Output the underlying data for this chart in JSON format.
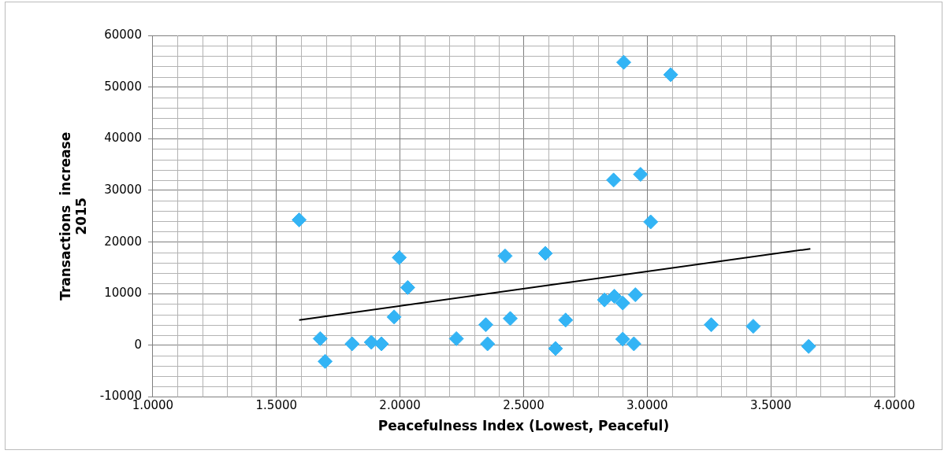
{
  "chart_data": {
    "type": "scatter",
    "xlabel": "Peacefulness Index (Lowest, Peaceful)",
    "ylabel": "Transactions  increase\n2015",
    "x": [
      1.592,
      1.677,
      1.697,
      1.806,
      1.884,
      1.925,
      1.976,
      1.997,
      2.031,
      2.228,
      2.347,
      2.354,
      2.425,
      2.446,
      2.588,
      2.629,
      2.67,
      2.827,
      2.867,
      2.864,
      2.901,
      2.905,
      2.901,
      2.946,
      2.952,
      2.973,
      3.014,
      3.095,
      3.259,
      3.429,
      3.653
    ],
    "series": [
      {
        "color": "#33b4f5",
        "marker": "diamond",
        "values": [
          24300,
          1300,
          -3100,
          300,
          600,
          300,
          5500,
          17000,
          11200,
          1300,
          4000,
          300,
          17300,
          5200,
          17800,
          -600,
          4900,
          8800,
          9500,
          32000,
          8200,
          54800,
          1200,
          300,
          9800,
          33100,
          23900,
          52400,
          4000,
          3700,
          -200
        ]
      },
      {
        "type": "line",
        "color": "#000000",
        "marker": "none",
        "x": [
          1.592,
          3.66
        ],
        "values": [
          4900,
          18700
        ]
      }
    ],
    "xlim": [
      1,
      4
    ],
    "xticks": [
      {
        "value": 1,
        "label": "1.0000"
      },
      {
        "value": 1.5,
        "label": "1.5000"
      },
      {
        "value": 2,
        "label": "2.0000"
      },
      {
        "value": 2.5,
        "label": "2.5000"
      },
      {
        "value": 3,
        "label": "3.0000"
      },
      {
        "value": 3.5,
        "label": "3.5000"
      },
      {
        "value": 4,
        "label": "4.0000"
      }
    ],
    "ylim": [
      -10000,
      60000
    ],
    "yticks": [
      -10000,
      0,
      10000,
      20000,
      30000,
      40000,
      50000,
      60000
    ],
    "grid": true,
    "legend": false
  }
}
